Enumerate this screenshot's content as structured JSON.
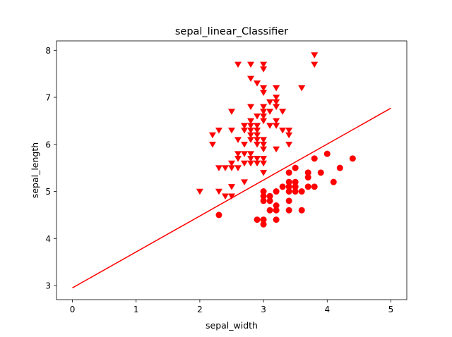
{
  "chart_data": {
    "type": "scatter",
    "title": "sepal_linear_Classifier",
    "xlabel": "sepal_width",
    "ylabel": "sepal_length",
    "xlim": [
      -0.25,
      5.25
    ],
    "ylim": [
      2.7,
      8.2
    ],
    "xticks": [
      0,
      1,
      2,
      3,
      4,
      5
    ],
    "yticks": [
      3,
      4,
      5,
      6,
      7,
      8
    ],
    "grid": false,
    "legend": "none",
    "color": "#ff0000",
    "series": [
      {
        "marker": "circle",
        "points": [
          [
            2.3,
            4.5
          ],
          [
            2.9,
            4.4
          ],
          [
            3.0,
            4.4
          ],
          [
            3.0,
            4.3
          ],
          [
            3.2,
            4.4
          ],
          [
            3.0,
            4.8
          ],
          [
            3.0,
            4.9
          ],
          [
            3.0,
            5.0
          ],
          [
            3.1,
            4.9
          ],
          [
            3.1,
            4.8
          ],
          [
            3.1,
            4.6
          ],
          [
            3.2,
            4.7
          ],
          [
            3.2,
            4.6
          ],
          [
            3.2,
            5.0
          ],
          [
            3.3,
            5.1
          ],
          [
            3.4,
            4.6
          ],
          [
            3.4,
            4.8
          ],
          [
            3.4,
            5.0
          ],
          [
            3.4,
            5.1
          ],
          [
            3.4,
            5.2
          ],
          [
            3.4,
            5.4
          ],
          [
            3.5,
            5.0
          ],
          [
            3.5,
            5.1
          ],
          [
            3.5,
            5.2
          ],
          [
            3.5,
            5.5
          ],
          [
            3.6,
            4.6
          ],
          [
            3.6,
            5.0
          ],
          [
            3.7,
            5.1
          ],
          [
            3.7,
            5.3
          ],
          [
            3.7,
            5.4
          ],
          [
            3.8,
            5.1
          ],
          [
            3.8,
            5.7
          ],
          [
            3.9,
            5.4
          ],
          [
            4.0,
            5.8
          ],
          [
            4.1,
            5.2
          ],
          [
            4.2,
            5.5
          ],
          [
            4.4,
            5.7
          ]
        ]
      },
      {
        "marker": "triangle-down",
        "points": [
          [
            2.0,
            5.0
          ],
          [
            2.2,
            6.0
          ],
          [
            2.2,
            6.2
          ],
          [
            2.3,
            5.0
          ],
          [
            2.3,
            5.5
          ],
          [
            2.3,
            6.3
          ],
          [
            2.4,
            4.9
          ],
          [
            2.4,
            5.5
          ],
          [
            2.5,
            4.9
          ],
          [
            2.5,
            5.1
          ],
          [
            2.5,
            5.5
          ],
          [
            2.5,
            5.6
          ],
          [
            2.5,
            6.3
          ],
          [
            2.5,
            6.7
          ],
          [
            2.6,
            5.5
          ],
          [
            2.6,
            5.7
          ],
          [
            2.6,
            5.8
          ],
          [
            2.6,
            6.1
          ],
          [
            2.6,
            7.7
          ],
          [
            2.7,
            5.2
          ],
          [
            2.7,
            5.6
          ],
          [
            2.7,
            5.8
          ],
          [
            2.7,
            6.0
          ],
          [
            2.7,
            6.3
          ],
          [
            2.7,
            6.4
          ],
          [
            2.8,
            5.6
          ],
          [
            2.8,
            5.7
          ],
          [
            2.8,
            5.8
          ],
          [
            2.8,
            6.1
          ],
          [
            2.8,
            6.2
          ],
          [
            2.8,
            6.3
          ],
          [
            2.8,
            6.4
          ],
          [
            2.8,
            6.5
          ],
          [
            2.8,
            6.8
          ],
          [
            2.8,
            7.4
          ],
          [
            2.8,
            7.7
          ],
          [
            2.9,
            5.6
          ],
          [
            2.9,
            5.7
          ],
          [
            2.9,
            6.0
          ],
          [
            2.9,
            6.1
          ],
          [
            2.9,
            6.2
          ],
          [
            2.9,
            6.3
          ],
          [
            2.9,
            6.4
          ],
          [
            2.9,
            6.6
          ],
          [
            2.9,
            7.3
          ],
          [
            3.0,
            5.4
          ],
          [
            3.0,
            5.6
          ],
          [
            3.0,
            5.7
          ],
          [
            3.0,
            5.9
          ],
          [
            3.0,
            6.0
          ],
          [
            3.0,
            6.1
          ],
          [
            3.0,
            6.5
          ],
          [
            3.0,
            6.6
          ],
          [
            3.0,
            6.7
          ],
          [
            3.0,
            6.8
          ],
          [
            3.0,
            7.1
          ],
          [
            3.0,
            7.2
          ],
          [
            3.0,
            7.6
          ],
          [
            3.0,
            7.7
          ],
          [
            3.1,
            6.4
          ],
          [
            3.1,
            6.7
          ],
          [
            3.1,
            6.9
          ],
          [
            3.2,
            5.9
          ],
          [
            3.2,
            6.4
          ],
          [
            3.2,
            6.5
          ],
          [
            3.2,
            6.8
          ],
          [
            3.2,
            6.9
          ],
          [
            3.2,
            7.0
          ],
          [
            3.2,
            7.2
          ],
          [
            3.3,
            6.3
          ],
          [
            3.3,
            6.7
          ],
          [
            3.4,
            6.0
          ],
          [
            3.4,
            6.2
          ],
          [
            3.4,
            6.3
          ],
          [
            3.6,
            7.2
          ],
          [
            3.8,
            7.7
          ],
          [
            3.8,
            7.9
          ]
        ]
      }
    ],
    "line": {
      "x": [
        0,
        5
      ],
      "y": [
        2.95,
        6.77
      ]
    }
  }
}
